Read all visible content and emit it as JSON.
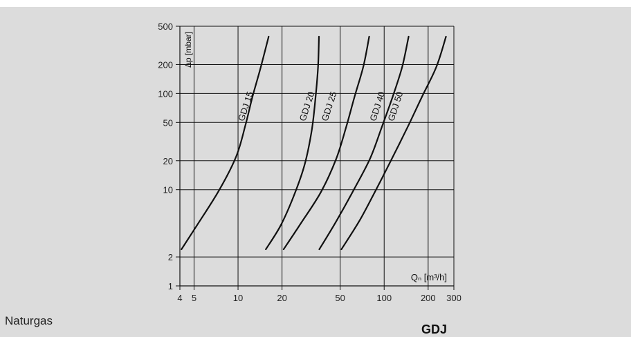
{
  "chart_data": {
    "type": "line",
    "xlabel": "Qₙ [m³/h]",
    "ylabel": "Δp [mbar]",
    "x_scale": "log",
    "y_scale": "log",
    "xlim": [
      4,
      300
    ],
    "ylim": [
      1,
      500
    ],
    "x_ticks": [
      4,
      5,
      10,
      20,
      50,
      100,
      200,
      300
    ],
    "x_tick_labels": [
      "4",
      "5",
      "10",
      "20",
      "50",
      "100",
      "200",
      "300"
    ],
    "y_ticks": [
      1,
      2,
      10,
      20,
      50,
      100,
      200,
      500
    ],
    "y_tick_labels": [
      "1",
      "2",
      "10",
      "20",
      "50",
      "100",
      "200",
      "500"
    ],
    "grid": true,
    "series": [
      {
        "name": "GDJ 15",
        "x": [
          4.1,
          5.2,
          7.4,
          9.7,
          11.2,
          12.5,
          14.2,
          16.2
        ],
        "y": [
          2.4,
          4.2,
          9.8,
          22,
          46,
          90,
          180,
          390
        ]
      },
      {
        "name": "GDJ 20",
        "x": [
          15.5,
          19.5,
          24,
          28.5,
          32,
          34,
          35.3,
          35.8
        ],
        "y": [
          2.4,
          4.2,
          8.5,
          18,
          42,
          95,
          190,
          390
        ]
      },
      {
        "name": "GDJ 25",
        "x": [
          20.5,
          27,
          37,
          47,
          55,
          63,
          72,
          79
        ],
        "y": [
          2.4,
          4.5,
          9.5,
          21,
          45,
          95,
          190,
          390
        ]
      },
      {
        "name": "GDJ 40",
        "x": [
          36,
          47,
          62,
          80,
          96,
          115,
          133,
          147
        ],
        "y": [
          2.4,
          4.7,
          10,
          21,
          44,
          95,
          190,
          390
        ]
      },
      {
        "name": "GDJ 50",
        "x": [
          51,
          68,
          88,
          113,
          145,
          183,
          228,
          265
        ],
        "y": [
          2.4,
          4.8,
          10,
          21,
          45,
          95,
          190,
          390
        ]
      }
    ],
    "series_label_positions": [
      {
        "name": "GDJ 15",
        "x": 11.8,
        "y": 72
      },
      {
        "name": "GDJ 20",
        "x": 31.0,
        "y": 72
      },
      {
        "name": "GDJ 25",
        "x": 44.0,
        "y": 72
      },
      {
        "name": "GDJ 40",
        "x": 94.0,
        "y": 72
      },
      {
        "name": "GDJ 50",
        "x": 125.0,
        "y": 72
      }
    ]
  },
  "page": {
    "footer_left": "Naturgas",
    "footer_right": "GDJ"
  }
}
